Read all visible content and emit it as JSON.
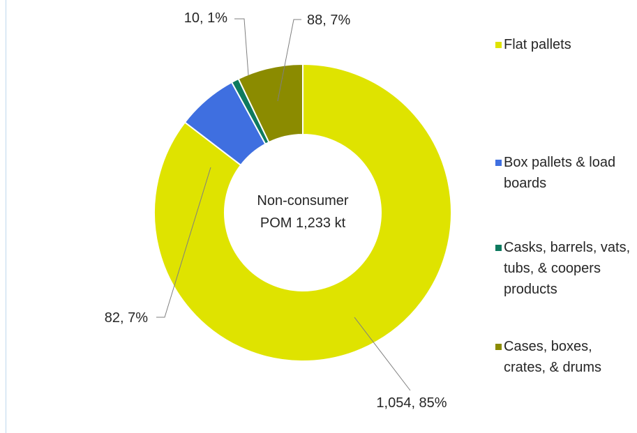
{
  "chart_data": {
    "type": "donut",
    "center_label": [
      "Non-consumer",
      "POM 1,233 kt"
    ],
    "categories": [
      "Flat pallets",
      "Box pallets & load boards",
      "Casks, barrels, vats, tubs, & coopers products",
      "Cases, boxes, crates, & drums"
    ],
    "values": [
      1054,
      82,
      10,
      88
    ],
    "value_labels": [
      "1,054, 85%",
      "82, 7%",
      "10, 1%",
      "88, 7%"
    ],
    "colors": [
      "#dfe300",
      "#3f6fe0",
      "#0e7a5f",
      "#8b8b00"
    ],
    "legend": "right"
  }
}
